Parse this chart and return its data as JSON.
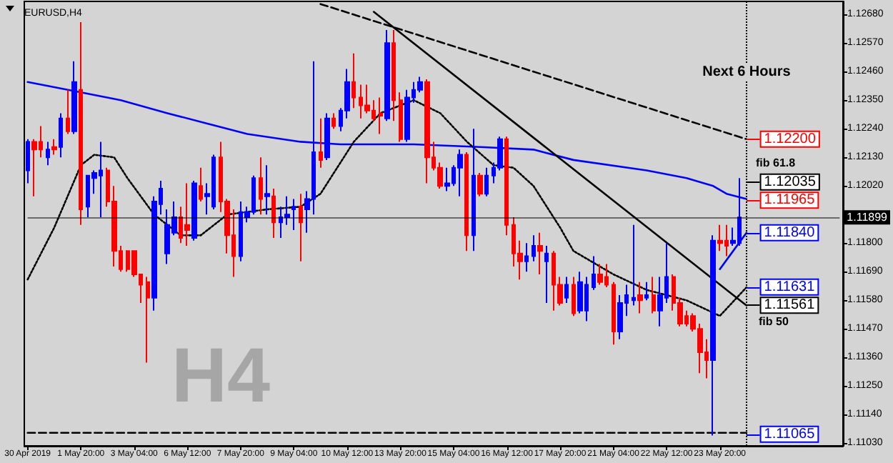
{
  "chart_data": {
    "type": "candlestick",
    "title": "EURUSD,H4",
    "marker": "none",
    "categories": [
      "30 Apr 2019",
      null,
      null,
      null,
      null,
      null,
      null,
      null,
      "1 May 20:00",
      null,
      null,
      null,
      null,
      null,
      null,
      null,
      "3 May 04:00",
      null,
      null,
      null,
      null,
      null,
      null,
      null,
      "6 May 12:00",
      null,
      null,
      null,
      null,
      null,
      null,
      null,
      "7 May 20:00",
      null,
      null,
      null,
      null,
      null,
      null,
      null,
      "9 May 04:00",
      null,
      null,
      null,
      null,
      null,
      null,
      null,
      "10 May 12:00",
      null,
      null,
      null,
      null,
      null,
      null,
      null,
      "13 May 20:00",
      null,
      null,
      null,
      null,
      null,
      null,
      null,
      "15 May 04:00",
      null,
      null,
      null,
      null,
      null,
      null,
      null,
      "16 May 12:00",
      null,
      null,
      null,
      null,
      null,
      null,
      null,
      "17 May 20:00",
      null,
      null,
      null,
      null,
      null,
      null,
      null,
      "21 May 04:00",
      null,
      null,
      null,
      null,
      null,
      null,
      null,
      "22 May 12:00",
      null,
      null,
      null,
      null,
      null,
      null,
      null,
      "23 May 20:00",
      null,
      null,
      null,
      null,
      null,
      null,
      null,
      null,
      null,
      null,
      null,
      null,
      null,
      null,
      null,
      null,
      null,
      null
    ],
    "ohlc": [
      [
        1.1208,
        1.122,
        1.1203,
        1.1219
      ],
      [
        1.1219,
        1.122,
        1.1198,
        1.1216
      ],
      [
        1.1219,
        1.1225,
        1.1213,
        1.1216
      ],
      [
        1.1213,
        1.1219,
        1.121,
        1.1216
      ],
      [
        1.1217,
        1.122,
        1.1214,
        1.1216
      ],
      [
        1.1217,
        1.123,
        1.1213,
        1.1228
      ],
      [
        1.1228,
        1.1239,
        1.1222,
        1.1223
      ],
      [
        1.1223,
        1.125,
        1.1222,
        1.1242
      ],
      [
        1.1239,
        1.1265,
        1.1187,
        1.1193
      ],
      [
        1.1194,
        1.1206,
        1.119,
        1.1206
      ],
      [
        1.1205,
        1.1208,
        1.1199,
        1.1207
      ],
      [
        1.1206,
        1.1219,
        1.119,
        1.1208
      ],
      [
        1.1208,
        1.1209,
        1.1194,
        1.1196
      ],
      [
        1.1196,
        1.1202,
        1.1171,
        1.1177
      ],
      [
        1.1177,
        1.1179,
        1.1169,
        1.117
      ],
      [
        1.1177,
        1.1177,
        1.1169,
        1.117
      ],
      [
        1.1177,
        1.1177,
        1.1167,
        1.1168
      ],
      [
        1.1168,
        1.1168,
        1.1157,
        1.1164
      ],
      [
        1.1165,
        1.1167,
        1.1134,
        1.1159
      ],
      [
        1.1159,
        1.1198,
        1.1154,
        1.1196
      ],
      [
        1.1195,
        1.1204,
        1.1191,
        1.1201
      ],
      [
        1.1176,
        1.1193,
        1.1172,
        1.1187
      ],
      [
        1.1184,
        1.1196,
        1.1183,
        1.119
      ],
      [
        1.119,
        1.1194,
        1.118,
        1.1182
      ],
      [
        1.1187,
        1.1203,
        1.1179,
        1.1185
      ],
      [
        1.1182,
        1.1204,
        1.1181,
        1.1203
      ],
      [
        1.1202,
        1.1209,
        1.1196,
        1.1197
      ],
      [
        1.1198,
        1.1203,
        1.1191,
        1.1199
      ],
      [
        1.1194,
        1.1214,
        1.1193,
        1.1213
      ],
      [
        1.1213,
        1.1219,
        1.1192,
        1.1196
      ],
      [
        1.1196,
        1.1197,
        1.1176,
        1.1183
      ],
      [
        1.1183,
        1.1193,
        1.1167,
        1.1175
      ],
      [
        1.1175,
        1.1196,
        1.1173,
        1.1192
      ],
      [
        1.119,
        1.1194,
        1.1188,
        1.1192
      ],
      [
        1.1192,
        1.1206,
        1.1191,
        1.1205
      ],
      [
        1.1205,
        1.1213,
        1.1191,
        1.1197
      ],
      [
        1.1198,
        1.121,
        1.1191,
        1.1199
      ],
      [
        1.1198,
        1.1201,
        1.1182,
        1.1188
      ],
      [
        1.1188,
        1.1194,
        1.1182,
        1.119
      ],
      [
        1.119,
        1.1198,
        1.1187,
        1.1191
      ],
      [
        1.1193,
        1.1197,
        1.1185,
        1.1194
      ],
      [
        1.1194,
        1.1199,
        1.1173,
        1.1188
      ],
      [
        1.1193,
        1.12,
        1.1184,
        1.1197
      ],
      [
        1.1197,
        1.125,
        1.1191,
        1.1215
      ],
      [
        1.1215,
        1.1228,
        1.1209,
        1.1212
      ],
      [
        1.1213,
        1.123,
        1.1212,
        1.1228
      ],
      [
        1.1228,
        1.123,
        1.1224,
        1.1225
      ],
      [
        1.1225,
        1.1232,
        1.1223,
        1.1231
      ],
      [
        1.1231,
        1.1247,
        1.1228,
        1.1242
      ],
      [
        1.1242,
        1.1253,
        1.1232,
        1.1236
      ],
      [
        1.1236,
        1.1241,
        1.1228,
        1.1233
      ],
      [
        1.1233,
        1.1241,
        1.123,
        1.1231
      ],
      [
        1.1231,
        1.1235,
        1.1227,
        1.1228
      ],
      [
        1.123,
        1.1236,
        1.1222,
        1.1229
      ],
      [
        1.1228,
        1.1262,
        1.1227,
        1.1257
      ],
      [
        1.1257,
        1.1262,
        1.1227,
        1.1235
      ],
      [
        1.1235,
        1.1238,
        1.1219,
        1.122
      ],
      [
        1.122,
        1.1239,
        1.1219,
        1.1236
      ],
      [
        1.1236,
        1.1242,
        1.1234,
        1.1239
      ],
      [
        1.1239,
        1.1244,
        1.1238,
        1.1242
      ],
      [
        1.1242,
        1.1243,
        1.1203,
        1.1213
      ],
      [
        1.1213,
        1.1219,
        1.1208,
        1.1209
      ],
      [
        1.1209,
        1.1211,
        1.1201,
        1.1202
      ],
      [
        1.1202,
        1.1209,
        1.12,
        1.1203
      ],
      [
        1.1203,
        1.121,
        1.1202,
        1.1209
      ],
      [
        1.1209,
        1.1216,
        1.1198,
        1.1214
      ],
      [
        1.1214,
        1.1215,
        1.1177,
        1.1183
      ],
      [
        1.1183,
        1.1224,
        1.1177,
        1.1206
      ],
      [
        1.1206,
        1.1207,
        1.1198,
        1.1199
      ],
      [
        1.1199,
        1.1209,
        1.1198,
        1.1206
      ],
      [
        1.1206,
        1.1211,
        1.1203,
        1.1209
      ],
      [
        1.1209,
        1.1221,
        1.1208,
        1.122
      ],
      [
        1.122,
        1.1221,
        1.1183,
        1.1187
      ],
      [
        1.1187,
        1.119,
        1.1171,
        1.1176
      ],
      [
        1.1176,
        1.1181,
        1.1166,
        1.1173
      ],
      [
        1.1173,
        1.118,
        1.1169,
        1.1175
      ],
      [
        1.1175,
        1.1183,
        1.1173,
        1.1179
      ],
      [
        1.1179,
        1.1184,
        1.1168,
        1.1177
      ],
      [
        1.1173,
        1.1179,
        1.1157,
        1.1176
      ],
      [
        1.1176,
        1.1177,
        1.1154,
        1.1164
      ],
      [
        1.1164,
        1.1167,
        1.1156,
        1.1157
      ],
      [
        1.1159,
        1.1167,
        1.1157,
        1.1164
      ],
      [
        1.1164,
        1.1167,
        1.1152,
        1.1153
      ],
      [
        1.1154,
        1.1169,
        1.1153,
        1.1165
      ],
      [
        1.1154,
        1.1167,
        1.115,
        1.1164
      ],
      [
        1.1163,
        1.1175,
        1.1162,
        1.1168
      ],
      [
        1.1168,
        1.1172,
        1.1164,
        1.1165
      ],
      [
        1.1167,
        1.1172,
        1.1163,
        1.1164
      ],
      [
        1.1164,
        1.1165,
        1.1141,
        1.1146
      ],
      [
        1.1146,
        1.116,
        1.1143,
        1.1157
      ],
      [
        1.1157,
        1.1164,
        1.1152,
        1.116
      ],
      [
        1.1158,
        1.1187,
        1.1156,
        1.1159
      ],
      [
        1.116,
        1.1165,
        1.1153,
        1.1158
      ],
      [
        1.1159,
        1.1165,
        1.1158,
        1.116
      ],
      [
        1.116,
        1.1167,
        1.1153,
        1.1154
      ],
      [
        1.1154,
        1.1167,
        1.1148,
        1.116
      ],
      [
        1.1159,
        1.118,
        1.1157,
        1.1167
      ],
      [
        1.1167,
        1.1168,
        1.1154,
        1.1157
      ],
      [
        1.1157,
        1.1159,
        1.1148,
        1.1149
      ],
      [
        1.1152,
        1.1154,
        1.1148,
        1.1149
      ],
      [
        1.1152,
        1.1153,
        1.1146,
        1.1147
      ],
      [
        1.1147,
        1.1149,
        1.113,
        1.1138
      ],
      [
        1.1138,
        1.1143,
        1.1128,
        1.1135
      ],
      [
        1.1135,
        1.1183,
        1.1106,
        1.1181
      ],
      [
        1.1181,
        1.1187,
        1.1177,
        1.118
      ],
      [
        1.1181,
        1.1187,
        1.1175,
        1.1179
      ],
      [
        1.118,
        1.1186,
        1.1179,
        1.1181
      ],
      [
        1.118,
        1.1205,
        1.1179,
        1.11899
      ],
      null,
      null,
      null,
      null,
      null,
      null,
      null,
      null,
      null,
      null,
      null,
      null,
      null,
      null,
      null
    ],
    "colors": [
      "#0000ff",
      "#ff0000",
      "#ff0000",
      "#0000ff",
      "#ff0000",
      "#0000ff",
      "#ff0000",
      "#0000ff",
      "#ff0000",
      "#0000ff",
      "#0000ff",
      "#0000ff",
      "#ff0000",
      "#ff0000",
      "#ff0000",
      "#ff0000",
      "#ff0000",
      "#ff0000",
      "#ff0000",
      "#0000ff",
      "#0000ff",
      "#0000ff",
      "#0000ff",
      "#ff0000",
      "#ff0000",
      "#0000ff",
      "#ff0000",
      "#0000ff",
      "#0000ff",
      "#ff0000",
      "#ff0000",
      "#ff0000",
      "#0000ff",
      "#0000ff",
      "#0000ff",
      "#ff0000",
      "#0000ff",
      "#ff0000",
      "#0000ff",
      "#0000ff",
      "#0000ff",
      "#ff0000",
      "#0000ff",
      "#0000ff",
      "#ff0000",
      "#0000ff",
      "#ff0000",
      "#0000ff",
      "#0000ff",
      "#ff0000",
      "#ff0000",
      "#ff0000",
      "#ff0000",
      "#ff0000",
      "#0000ff",
      "#ff0000",
      "#ff0000",
      "#0000ff",
      "#0000ff",
      "#0000ff",
      "#ff0000",
      "#ff0000",
      "#ff0000",
      "#0000ff",
      "#0000ff",
      "#0000ff",
      "#ff0000",
      "#0000ff",
      "#ff0000",
      "#0000ff",
      "#0000ff",
      "#0000ff",
      "#ff0000",
      "#ff0000",
      "#ff0000",
      "#0000ff",
      "#0000ff",
      "#ff0000",
      "#0000ff",
      "#ff0000",
      "#ff0000",
      "#0000ff",
      "#ff0000",
      "#0000ff",
      "#0000ff",
      "#0000ff",
      "#ff0000",
      "#ff0000",
      "#ff0000",
      "#0000ff",
      "#0000ff",
      "#0000ff",
      "#ff0000",
      "#0000ff",
      "#ff0000",
      "#0000ff",
      "#0000ff",
      "#ff0000",
      "#ff0000",
      "#ff0000",
      "#ff0000",
      "#ff0000",
      "#ff0000",
      "#0000ff",
      "#ff0000",
      "#ff0000",
      "#0000ff",
      "#0000ff",
      null,
      null,
      null,
      null,
      null,
      null,
      null,
      null,
      null,
      null,
      null,
      null,
      null,
      null,
      null
    ],
    "series": [
      {
        "type": "line",
        "color": "#0000ff",
        "line_style": "solid",
        "values": [
          1.1242,
          null,
          null,
          null,
          null,
          null,
          null,
          null,
          1.1238,
          null,
          null,
          null,
          null,
          null,
          1.1235,
          null,
          null,
          null,
          null,
          null,
          null,
          1.123,
          null,
          null,
          null,
          null,
          null,
          1.1226,
          null,
          null,
          null,
          null,
          null,
          1.1222,
          null,
          null,
          null,
          null,
          null,
          null,
          null,
          1.1219,
          null,
          null,
          null,
          null,
          null,
          1.1218,
          null,
          null,
          null,
          null,
          null,
          null,
          null,
          null,
          null,
          null,
          1.1218,
          null,
          null,
          null,
          null,
          null,
          null,
          null,
          null,
          null,
          1.1217,
          null,
          null,
          null,
          null,
          null,
          null,
          null,
          1.1216,
          null,
          null,
          null,
          null,
          null,
          1.1212,
          null,
          null,
          null,
          null,
          null,
          null,
          null,
          null,
          null,
          null,
          1.1208,
          null,
          null,
          null,
          null,
          null,
          1.1205,
          null,
          null,
          null,
          1.1202,
          null,
          1.1199,
          null,
          null,
          1.1197,
          null,
          null,
          null,
          null,
          null,
          null,
          null,
          null,
          null,
          null,
          null,
          null,
          null,
          null
        ]
      },
      {
        "type": "line",
        "color": "#000000",
        "line_style": "dotted",
        "values": [
          1.1166,
          null,
          null,
          null,
          1.1186,
          null,
          null,
          null,
          1.121,
          null,
          1.1214,
          null,
          null,
          1.1213,
          null,
          1.1205,
          null,
          null,
          null,
          1.1191,
          null,
          null,
          null,
          1.1183,
          null,
          null,
          1.1183,
          null,
          null,
          null,
          1.1191,
          null,
          null,
          null,
          null,
          null,
          1.1193,
          null,
          null,
          null,
          null,
          1.1194,
          null,
          null,
          1.1199,
          null,
          null,
          null,
          null,
          1.1219,
          null,
          null,
          null,
          1.123,
          null,
          null,
          null,
          null,
          1.1235,
          null,
          null,
          null,
          1.123,
          null,
          null,
          null,
          1.1219,
          null,
          null,
          null,
          1.121,
          null,
          null,
          1.1209,
          null,
          null,
          1.1202,
          null,
          null,
          null,
          1.1186,
          null,
          1.1177,
          null,
          null,
          null,
          null,
          null,
          1.1168,
          null,
          null,
          null,
          null,
          1.1162,
          null,
          null,
          null,
          null,
          null,
          1.1158,
          null,
          null,
          null,
          null,
          1.1152,
          null,
          null,
          null,
          1.1163,
          null,
          null,
          null,
          null,
          null,
          null,
          null,
          null,
          null,
          null,
          null,
          null,
          null,
          null
        ]
      },
      {
        "type": "line",
        "color": "#000000",
        "line_style": "dashed",
        "values": [
          null,
          null,
          null,
          null,
          null,
          null,
          null,
          null,
          null,
          null,
          null,
          null,
          null,
          null,
          null,
          null,
          null,
          null,
          null,
          null,
          null,
          null,
          null,
          null,
          null,
          null,
          null,
          null,
          null,
          null,
          null,
          null,
          null,
          null,
          null,
          null,
          null,
          null,
          null,
          null,
          null,
          null,
          null,
          null,
          1.1272,
          null,
          null,
          null,
          null,
          null,
          null,
          null,
          null,
          null,
          null,
          null,
          null,
          null,
          null,
          null,
          null,
          null,
          null,
          null,
          null,
          null,
          null,
          null,
          null,
          null,
          null,
          null,
          null,
          null,
          null,
          null,
          null,
          null,
          null,
          null,
          null,
          null,
          null,
          null,
          null,
          null,
          null,
          null,
          null,
          null,
          null,
          null,
          null,
          null,
          null,
          null,
          null,
          null,
          null,
          null,
          null,
          null,
          null,
          null,
          null,
          null,
          null,
          null,
          1.122,
          null,
          null,
          null,
          null,
          null,
          null,
          null,
          null,
          null,
          null,
          null,
          null,
          null,
          null
        ]
      },
      {
        "type": "line",
        "color": "#000000",
        "line_style": "solid",
        "values": [
          null,
          null,
          null,
          null,
          null,
          null,
          null,
          null,
          null,
          null,
          null,
          null,
          null,
          null,
          null,
          null,
          null,
          null,
          null,
          null,
          null,
          null,
          null,
          null,
          null,
          null,
          null,
          null,
          null,
          null,
          null,
          null,
          null,
          null,
          null,
          null,
          null,
          null,
          null,
          null,
          null,
          null,
          null,
          null,
          null,
          null,
          null,
          null,
          null,
          null,
          null,
          null,
          1.1269,
          null,
          null,
          null,
          null,
          null,
          null,
          null,
          null,
          null,
          null,
          null,
          null,
          null,
          null,
          null,
          null,
          null,
          null,
          null,
          null,
          null,
          null,
          null,
          null,
          null,
          null,
          null,
          null,
          null,
          null,
          null,
          null,
          null,
          null,
          null,
          null,
          null,
          null,
          null,
          null,
          null,
          null,
          null,
          null,
          null,
          null,
          null,
          null,
          null,
          null,
          null,
          null,
          null,
          null,
          null,
          1.1156,
          null,
          null,
          null,
          null,
          null,
          null,
          null,
          null,
          null,
          null,
          null,
          null,
          null,
          null
        ]
      },
      {
        "type": "line",
        "color": "#000000",
        "line_style": "dashed",
        "values": [
          1.1107,
          null,
          null,
          null,
          null,
          null,
          null,
          null,
          null,
          null,
          null,
          null,
          null,
          null,
          null,
          null,
          null,
          null,
          null,
          null,
          null,
          null,
          null,
          null,
          null,
          null,
          null,
          null,
          null,
          null,
          null,
          null,
          null,
          null,
          null,
          null,
          null,
          null,
          null,
          null,
          null,
          null,
          null,
          null,
          null,
          null,
          null,
          null,
          null,
          null,
          null,
          null,
          null,
          null,
          null,
          null,
          null,
          null,
          null,
          null,
          null,
          null,
          null,
          null,
          null,
          null,
          null,
          null,
          null,
          null,
          null,
          null,
          null,
          null,
          null,
          null,
          null,
          null,
          null,
          null,
          null,
          null,
          null,
          null,
          null,
          null,
          null,
          null,
          null,
          null,
          null,
          null,
          null,
          null,
          null,
          null,
          null,
          null,
          null,
          null,
          null,
          null,
          null,
          null,
          null,
          null,
          null,
          null,
          1.1107,
          null,
          null,
          null,
          null,
          null,
          null,
          null,
          null,
          null,
          null,
          null,
          null,
          null,
          null
        ]
      },
      {
        "type": "line",
        "color": "#0000ff",
        "line_style": "solid",
        "values": [
          null,
          null,
          null,
          null,
          null,
          null,
          null,
          null,
          null,
          null,
          null,
          null,
          null,
          null,
          null,
          null,
          null,
          null,
          null,
          null,
          null,
          null,
          null,
          null,
          null,
          null,
          null,
          null,
          null,
          null,
          null,
          null,
          null,
          null,
          null,
          null,
          null,
          null,
          null,
          null,
          null,
          null,
          null,
          null,
          null,
          null,
          null,
          null,
          null,
          null,
          null,
          null,
          null,
          null,
          null,
          null,
          null,
          null,
          null,
          null,
          null,
          null,
          null,
          null,
          null,
          null,
          null,
          null,
          null,
          null,
          null,
          null,
          null,
          null,
          null,
          null,
          null,
          null,
          null,
          null,
          null,
          null,
          null,
          null,
          null,
          null,
          null,
          null,
          null,
          null,
          null,
          null,
          null,
          null,
          null,
          null,
          null,
          null,
          null,
          null,
          null,
          null,
          null,
          null,
          1.117,
          null,
          null,
          null,
          1.1184,
          null,
          null,
          null,
          null,
          null,
          null,
          null,
          null,
          null,
          null,
          null,
          null,
          null,
          null
        ]
      }
    ],
    "ylim": [
      1.1102,
      1.1273
    ],
    "yticks": [
      {
        "value": 1.1103,
        "label": "1.11030"
      },
      {
        "value": 1.1114,
        "label": "1.11140"
      },
      {
        "value": 1.1125,
        "label": "1.11250"
      },
      {
        "value": 1.1136,
        "label": "1.11360"
      },
      {
        "value": 1.1147,
        "label": "1.11470"
      },
      {
        "value": 1.1158,
        "label": "1.11580"
      },
      {
        "value": 1.1169,
        "label": "1.11690"
      },
      {
        "value": 1.118,
        "label": "1.11800"
      },
      {
        "value": 1.1202,
        "label": "1.12020"
      },
      {
        "value": 1.1213,
        "label": "1.12130"
      },
      {
        "value": 1.1224,
        "label": "1.12240"
      },
      {
        "value": 1.1235,
        "label": "1.12350"
      },
      {
        "value": 1.1246,
        "label": "1.12460"
      },
      {
        "value": 1.1257,
        "label": "1.12570"
      },
      {
        "value": 1.1268,
        "label": "1.12680"
      }
    ],
    "ref_lines": [
      {
        "axis": "y",
        "value": 1.11899,
        "label": "1.11899",
        "color": "#000000",
        "line_style": "solid"
      },
      {
        "axis": "x",
        "label": "Next 6 Hours",
        "color": "#000000",
        "line_style": "dotted"
      },
      {
        "axis": "y",
        "value": 1.122,
        "label": "1.12200",
        "color": "#ff0000"
      },
      {
        "axis": "y",
        "value": 1.12035,
        "label": "1.12035",
        "color": "#000000"
      },
      {
        "axis": "y",
        "value": 1.11965,
        "label": "1.11965",
        "color": "#ff0000"
      },
      {
        "axis": "y",
        "value": 1.1184,
        "label": "1.11840",
        "color": "#0000ff"
      },
      {
        "axis": "y",
        "value": 1.11631,
        "label": "1.11631",
        "color": "#0000ff"
      },
      {
        "axis": "y",
        "value": 1.11561,
        "label": "1.11561",
        "color": "#000000"
      },
      {
        "axis": "y",
        "value": 1.11065,
        "label": "1.11065",
        "color": "#0000ff"
      }
    ],
    "annotations": [
      "fib 61.8",
      "fib 50",
      "H4"
    ]
  }
}
